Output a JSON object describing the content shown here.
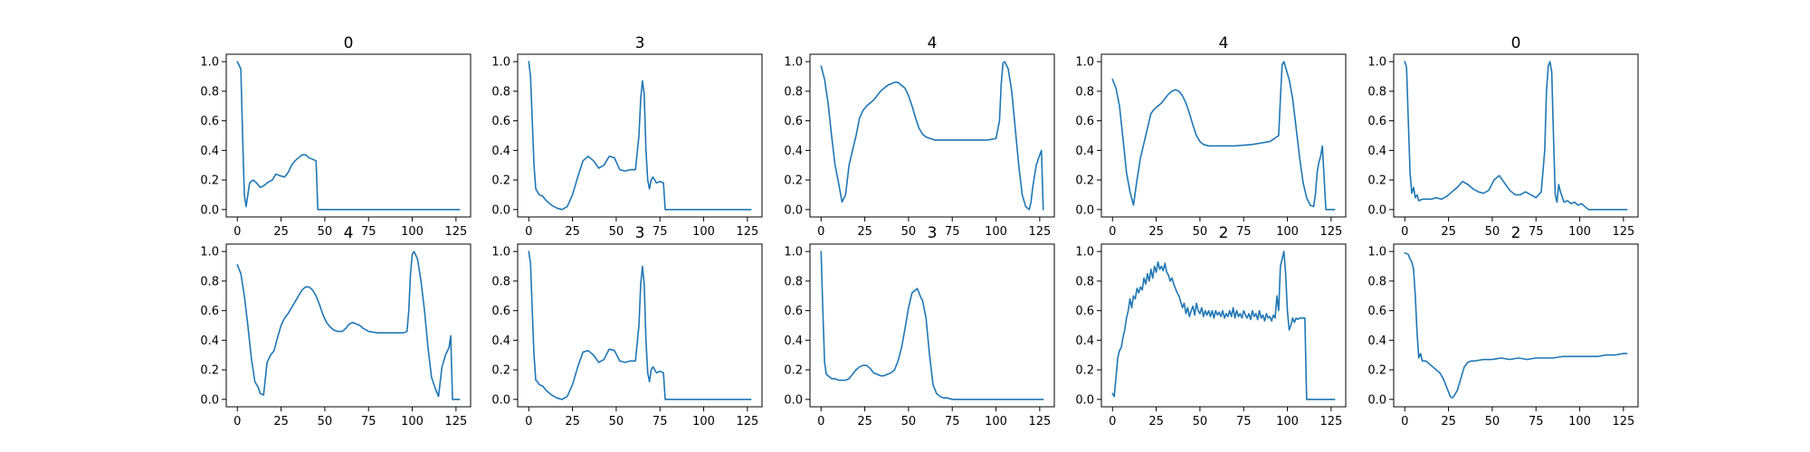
{
  "chart_data": [
    {
      "type": "line",
      "title": "0",
      "xlim": [
        0,
        127
      ],
      "ylim": [
        0,
        1
      ],
      "xticks": [
        0,
        25,
        50,
        75,
        100,
        125
      ],
      "yticks": [
        0.0,
        0.2,
        0.4,
        0.6,
        0.8,
        1.0
      ],
      "x": [
        0,
        2,
        3,
        4,
        5,
        7,
        9,
        11,
        13,
        15,
        17,
        20,
        22,
        24,
        27,
        29,
        31,
        33,
        35,
        37,
        39,
        41,
        43,
        45,
        46,
        47,
        50,
        75,
        100,
        127
      ],
      "y": [
        1.0,
        0.95,
        0.5,
        0.1,
        0.02,
        0.18,
        0.2,
        0.18,
        0.15,
        0.16,
        0.18,
        0.2,
        0.24,
        0.23,
        0.22,
        0.25,
        0.3,
        0.33,
        0.35,
        0.37,
        0.37,
        0.35,
        0.34,
        0.33,
        0.0,
        0.0,
        0.0,
        0.0,
        0.0,
        0.0
      ]
    },
    {
      "type": "line",
      "title": "3",
      "xlim": [
        0,
        127
      ],
      "ylim": [
        0,
        1
      ],
      "xticks": [
        0,
        25,
        50,
        75,
        100,
        125
      ],
      "yticks": [
        0.0,
        0.2,
        0.4,
        0.6,
        0.8,
        1.0
      ],
      "x": [
        0,
        1,
        2,
        3,
        4,
        5,
        6,
        8,
        10,
        13,
        16,
        19,
        22,
        25,
        28,
        31,
        34,
        37,
        40,
        43,
        46,
        49,
        52,
        55,
        58,
        61,
        63,
        64,
        65,
        66,
        67,
        68,
        69,
        70,
        71,
        73,
        75,
        77,
        78,
        80,
        90,
        127
      ],
      "y": [
        1.0,
        0.9,
        0.6,
        0.3,
        0.14,
        0.12,
        0.1,
        0.09,
        0.06,
        0.03,
        0.01,
        0.0,
        0.02,
        0.1,
        0.22,
        0.33,
        0.36,
        0.33,
        0.28,
        0.3,
        0.36,
        0.35,
        0.27,
        0.26,
        0.27,
        0.27,
        0.5,
        0.75,
        0.87,
        0.78,
        0.4,
        0.2,
        0.14,
        0.2,
        0.22,
        0.18,
        0.19,
        0.18,
        0.0,
        0.0,
        0.0,
        0.0
      ]
    },
    {
      "type": "line",
      "title": "4",
      "xlim": [
        0,
        127
      ],
      "ylim": [
        0,
        1
      ],
      "xticks": [
        0,
        25,
        50,
        75,
        100,
        125
      ],
      "yticks": [
        0.0,
        0.2,
        0.4,
        0.6,
        0.8,
        1.0
      ],
      "x": [
        0,
        2,
        4,
        6,
        8,
        10,
        12,
        14,
        16,
        18,
        20,
        22,
        24,
        26,
        28,
        30,
        32,
        34,
        36,
        38,
        40,
        42,
        44,
        46,
        48,
        50,
        52,
        54,
        56,
        58,
        60,
        65,
        70,
        75,
        80,
        85,
        90,
        95,
        100,
        102,
        103,
        104,
        105,
        107,
        109,
        111,
        113,
        115,
        117,
        119,
        120,
        121,
        123,
        125,
        126,
        127
      ],
      "y": [
        0.97,
        0.88,
        0.72,
        0.5,
        0.3,
        0.18,
        0.05,
        0.1,
        0.3,
        0.4,
        0.5,
        0.62,
        0.67,
        0.7,
        0.72,
        0.74,
        0.77,
        0.8,
        0.82,
        0.84,
        0.85,
        0.86,
        0.86,
        0.84,
        0.82,
        0.77,
        0.7,
        0.62,
        0.55,
        0.51,
        0.49,
        0.47,
        0.47,
        0.47,
        0.47,
        0.47,
        0.47,
        0.47,
        0.48,
        0.6,
        0.85,
        0.99,
        1.0,
        0.95,
        0.8,
        0.55,
        0.3,
        0.1,
        0.02,
        0.0,
        0.05,
        0.15,
        0.3,
        0.37,
        0.4,
        0.0
      ]
    },
    {
      "type": "line",
      "title": "4",
      "xlim": [
        0,
        127
      ],
      "ylim": [
        0,
        1
      ],
      "xticks": [
        0,
        25,
        50,
        75,
        100,
        125
      ],
      "yticks": [
        0.0,
        0.2,
        0.4,
        0.6,
        0.8,
        1.0
      ],
      "x": [
        0,
        2,
        4,
        6,
        8,
        10,
        12,
        14,
        16,
        18,
        20,
        22,
        24,
        26,
        28,
        30,
        32,
        34,
        36,
        38,
        40,
        42,
        44,
        46,
        48,
        50,
        52,
        55,
        60,
        70,
        80,
        90,
        95,
        96,
        97,
        98,
        99,
        101,
        103,
        105,
        107,
        109,
        111,
        113,
        115,
        116,
        117,
        118,
        119,
        120,
        122,
        127
      ],
      "y": [
        0.88,
        0.82,
        0.7,
        0.48,
        0.25,
        0.12,
        0.03,
        0.2,
        0.35,
        0.45,
        0.55,
        0.65,
        0.68,
        0.7,
        0.72,
        0.75,
        0.78,
        0.8,
        0.81,
        0.8,
        0.77,
        0.72,
        0.65,
        0.57,
        0.5,
        0.46,
        0.44,
        0.43,
        0.43,
        0.43,
        0.44,
        0.46,
        0.5,
        0.75,
        0.98,
        1.0,
        0.96,
        0.88,
        0.75,
        0.55,
        0.35,
        0.18,
        0.08,
        0.03,
        0.02,
        0.1,
        0.25,
        0.32,
        0.36,
        0.43,
        0.0,
        0.0
      ]
    },
    {
      "type": "line",
      "title": "0",
      "xlim": [
        0,
        127
      ],
      "ylim": [
        0,
        1
      ],
      "xticks": [
        0,
        25,
        50,
        75,
        100,
        125
      ],
      "yticks": [
        0.0,
        0.2,
        0.4,
        0.6,
        0.8,
        1.0
      ],
      "x": [
        0,
        1,
        2,
        3,
        4,
        5,
        6,
        7,
        8,
        10,
        12,
        15,
        18,
        21,
        24,
        27,
        30,
        33,
        36,
        39,
        42,
        45,
        48,
        51,
        54,
        57,
        60,
        63,
        66,
        69,
        72,
        75,
        78,
        80,
        81,
        82,
        83,
        84,
        85,
        86,
        87,
        88,
        89,
        91,
        93,
        95,
        97,
        99,
        101,
        103,
        105,
        110,
        127
      ],
      "y": [
        1.0,
        0.96,
        0.6,
        0.25,
        0.11,
        0.15,
        0.08,
        0.1,
        0.06,
        0.07,
        0.07,
        0.07,
        0.08,
        0.07,
        0.09,
        0.12,
        0.15,
        0.19,
        0.17,
        0.14,
        0.12,
        0.11,
        0.13,
        0.2,
        0.23,
        0.18,
        0.13,
        0.1,
        0.1,
        0.12,
        0.1,
        0.08,
        0.12,
        0.4,
        0.8,
        0.97,
        1.0,
        0.93,
        0.5,
        0.1,
        0.05,
        0.17,
        0.12,
        0.05,
        0.06,
        0.04,
        0.05,
        0.03,
        0.04,
        0.02,
        0.0,
        0.0,
        0.0
      ]
    },
    {
      "type": "line",
      "title": "4",
      "xlim": [
        0,
        127
      ],
      "ylim": [
        0,
        1
      ],
      "xticks": [
        0,
        25,
        50,
        75,
        100,
        125
      ],
      "yticks": [
        0.0,
        0.2,
        0.4,
        0.6,
        0.8,
        1.0
      ],
      "x": [
        0,
        2,
        4,
        6,
        8,
        10,
        12,
        13,
        15,
        17,
        19,
        21,
        23,
        25,
        27,
        29,
        31,
        33,
        35,
        37,
        39,
        41,
        43,
        45,
        47,
        49,
        51,
        53,
        55,
        57,
        60,
        62,
        64,
        66,
        68,
        70,
        72,
        75,
        80,
        85,
        90,
        95,
        97,
        98,
        99,
        100,
        101,
        103,
        105,
        107,
        109,
        111,
        113,
        115,
        117,
        119,
        121,
        122,
        123,
        125,
        127
      ],
      "y": [
        0.91,
        0.85,
        0.7,
        0.5,
        0.28,
        0.12,
        0.08,
        0.04,
        0.03,
        0.25,
        0.3,
        0.33,
        0.42,
        0.5,
        0.55,
        0.58,
        0.62,
        0.66,
        0.7,
        0.74,
        0.76,
        0.76,
        0.74,
        0.7,
        0.64,
        0.57,
        0.52,
        0.49,
        0.47,
        0.46,
        0.46,
        0.48,
        0.51,
        0.52,
        0.51,
        0.5,
        0.48,
        0.46,
        0.45,
        0.45,
        0.45,
        0.45,
        0.46,
        0.6,
        0.85,
        0.98,
        1.0,
        0.95,
        0.8,
        0.6,
        0.35,
        0.15,
        0.08,
        0.02,
        0.22,
        0.3,
        0.35,
        0.43,
        0.0,
        0.0,
        0.0
      ]
    },
    {
      "type": "line",
      "title": "3",
      "xlim": [
        0,
        127
      ],
      "ylim": [
        0,
        1
      ],
      "xticks": [
        0,
        25,
        50,
        75,
        100,
        125
      ],
      "yticks": [
        0.0,
        0.2,
        0.4,
        0.6,
        0.8,
        1.0
      ],
      "x": [
        0,
        1,
        2,
        3,
        4,
        5,
        6,
        8,
        10,
        13,
        16,
        19,
        22,
        25,
        28,
        31,
        34,
        37,
        40,
        43,
        46,
        49,
        52,
        55,
        58,
        61,
        63,
        64,
        65,
        66,
        67,
        68,
        69,
        70,
        71,
        73,
        75,
        77,
        78,
        80,
        90,
        127
      ],
      "y": [
        1.0,
        0.92,
        0.6,
        0.3,
        0.13,
        0.12,
        0.1,
        0.09,
        0.06,
        0.03,
        0.01,
        0.0,
        0.02,
        0.1,
        0.22,
        0.32,
        0.33,
        0.3,
        0.25,
        0.27,
        0.34,
        0.33,
        0.26,
        0.25,
        0.26,
        0.26,
        0.5,
        0.78,
        0.9,
        0.78,
        0.4,
        0.18,
        0.12,
        0.2,
        0.22,
        0.18,
        0.19,
        0.18,
        0.0,
        0.0,
        0.0,
        0.0
      ]
    },
    {
      "type": "line",
      "title": "3",
      "xlim": [
        0,
        127
      ],
      "ylim": [
        0,
        1
      ],
      "xticks": [
        0,
        25,
        50,
        75,
        100,
        125
      ],
      "yticks": [
        0.0,
        0.2,
        0.4,
        0.6,
        0.8,
        1.0
      ],
      "x": [
        0,
        1,
        2,
        3,
        4,
        6,
        8,
        10,
        12,
        14,
        16,
        18,
        20,
        22,
        24,
        26,
        28,
        30,
        32,
        34,
        36,
        38,
        40,
        42,
        44,
        46,
        48,
        50,
        52,
        54,
        55,
        56,
        57,
        58,
        60,
        62,
        64,
        66,
        68,
        70,
        72,
        75,
        100,
        127
      ],
      "y": [
        1.0,
        0.6,
        0.25,
        0.17,
        0.16,
        0.14,
        0.14,
        0.13,
        0.13,
        0.13,
        0.14,
        0.17,
        0.2,
        0.22,
        0.23,
        0.23,
        0.21,
        0.18,
        0.17,
        0.16,
        0.16,
        0.17,
        0.18,
        0.2,
        0.26,
        0.35,
        0.48,
        0.62,
        0.72,
        0.74,
        0.75,
        0.72,
        0.69,
        0.67,
        0.55,
        0.3,
        0.1,
        0.04,
        0.02,
        0.01,
        0.01,
        0.0,
        0.0,
        0.0
      ]
    },
    {
      "type": "line",
      "title": "2",
      "xlim": [
        0,
        127
      ],
      "ylim": [
        0,
        1
      ],
      "xticks": [
        0,
        25,
        50,
        75,
        100,
        125
      ],
      "yticks": [
        0.0,
        0.2,
        0.4,
        0.6,
        0.8,
        1.0
      ],
      "x": [
        0,
        1,
        2,
        3,
        4,
        5,
        6,
        7,
        8,
        9,
        10,
        11,
        12,
        13,
        14,
        15,
        16,
        17,
        18,
        19,
        20,
        21,
        22,
        23,
        24,
        25,
        26,
        27,
        28,
        29,
        30,
        31,
        32,
        33,
        34,
        35,
        36,
        37,
        38,
        39,
        40,
        41,
        42,
        43,
        44,
        45,
        46,
        47,
        48,
        49,
        50,
        51,
        52,
        53,
        54,
        55,
        56,
        57,
        58,
        59,
        60,
        61,
        62,
        63,
        64,
        65,
        66,
        67,
        68,
        69,
        70,
        71,
        72,
        73,
        74,
        75,
        76,
        77,
        78,
        79,
        80,
        81,
        82,
        83,
        84,
        85,
        86,
        87,
        88,
        89,
        90,
        91,
        92,
        93,
        94,
        95,
        96,
        97,
        98,
        99,
        100,
        101,
        102,
        103,
        104,
        105,
        106,
        107,
        108,
        109,
        110,
        111,
        112,
        115,
        120,
        127
      ],
      "y": [
        0.04,
        0.02,
        0.15,
        0.28,
        0.33,
        0.35,
        0.42,
        0.47,
        0.55,
        0.6,
        0.68,
        0.62,
        0.7,
        0.68,
        0.75,
        0.72,
        0.76,
        0.74,
        0.82,
        0.78,
        0.85,
        0.8,
        0.88,
        0.82,
        0.9,
        0.86,
        0.93,
        0.88,
        0.9,
        0.87,
        0.92,
        0.86,
        0.84,
        0.8,
        0.82,
        0.78,
        0.75,
        0.72,
        0.7,
        0.66,
        0.62,
        0.65,
        0.58,
        0.62,
        0.56,
        0.6,
        0.63,
        0.57,
        0.65,
        0.6,
        0.58,
        0.62,
        0.56,
        0.6,
        0.57,
        0.6,
        0.56,
        0.6,
        0.55,
        0.6,
        0.57,
        0.59,
        0.56,
        0.6,
        0.55,
        0.58,
        0.56,
        0.6,
        0.56,
        0.62,
        0.55,
        0.6,
        0.56,
        0.58,
        0.55,
        0.6,
        0.57,
        0.55,
        0.58,
        0.54,
        0.6,
        0.56,
        0.58,
        0.54,
        0.6,
        0.55,
        0.57,
        0.53,
        0.58,
        0.55,
        0.56,
        0.53,
        0.57,
        0.55,
        0.7,
        0.6,
        0.9,
        0.95,
        1.0,
        0.85,
        0.6,
        0.47,
        0.5,
        0.55,
        0.52,
        0.55,
        0.54,
        0.55,
        0.55,
        0.55,
        0.55,
        0.0,
        0.0,
        0.0,
        0.0,
        0.0
      ]
    },
    {
      "type": "line",
      "title": "2",
      "xlim": [
        0,
        127
      ],
      "ylim": [
        0,
        1
      ],
      "xticks": [
        0,
        25,
        50,
        75,
        100,
        125
      ],
      "yticks": [
        0.0,
        0.2,
        0.4,
        0.6,
        0.8,
        1.0
      ],
      "x": [
        0,
        2,
        3,
        4,
        5,
        6,
        7,
        8,
        9,
        10,
        12,
        14,
        16,
        18,
        20,
        22,
        24,
        26,
        27,
        28,
        30,
        32,
        34,
        36,
        38,
        40,
        45,
        50,
        55,
        60,
        65,
        70,
        75,
        80,
        85,
        90,
        95,
        100,
        105,
        110,
        115,
        120,
        125,
        127
      ],
      "y": [
        0.99,
        0.98,
        0.95,
        0.93,
        0.88,
        0.7,
        0.45,
        0.28,
        0.31,
        0.26,
        0.26,
        0.24,
        0.22,
        0.2,
        0.18,
        0.14,
        0.08,
        0.02,
        0.01,
        0.02,
        0.06,
        0.14,
        0.22,
        0.25,
        0.26,
        0.26,
        0.27,
        0.27,
        0.28,
        0.27,
        0.28,
        0.27,
        0.28,
        0.28,
        0.28,
        0.29,
        0.29,
        0.29,
        0.29,
        0.29,
        0.3,
        0.3,
        0.31,
        0.31
      ]
    }
  ],
  "colors": {
    "line": "#1f77b4",
    "axes": "#000000",
    "background": "#ffffff"
  }
}
